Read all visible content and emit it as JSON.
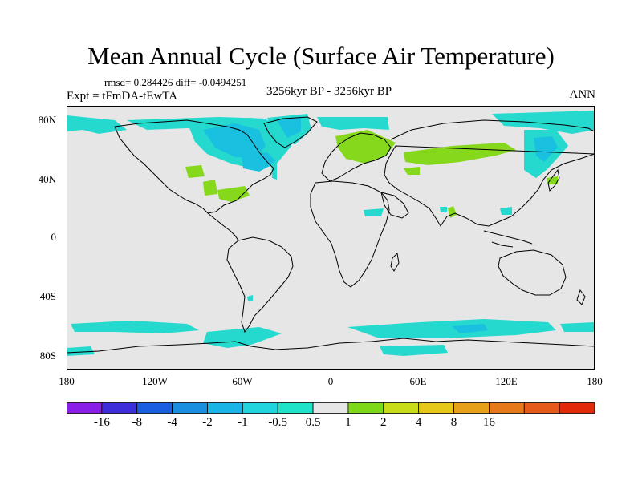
{
  "title": "Mean Annual Cycle (Surface Air Temperature)",
  "stats": "rmsd= 0.284426 diff= -0.0494251",
  "experiment": "Expt = tFmDA-tEwTA",
  "period": "3256kyr BP - 3256kyr BP",
  "season": "ANN",
  "lat_labels": [
    "80N",
    "40N",
    "0",
    "40S",
    "80S"
  ],
  "lon_labels": [
    "180",
    "120W",
    "60W",
    "0",
    "60E",
    "120E",
    "180"
  ],
  "colorbar": {
    "labels": [
      "-16",
      "-8",
      "-4",
      "-2",
      "-1",
      "-0.5",
      "0.5",
      "1",
      "2",
      "4",
      "8",
      "16"
    ],
    "colors": [
      "#8a1ee6",
      "#3d2ed9",
      "#1a5fe0",
      "#1a8fe0",
      "#1ab4e6",
      "#22d4dd",
      "#1fe3c9",
      "#e6e6e6",
      "#7ed81a",
      "#c8dc1a",
      "#e6c81a",
      "#e6a01a",
      "#e67a1a",
      "#e65a1a",
      "#e02a0a"
    ]
  },
  "colors": {
    "ocean_land_bg": "#e6e6e6",
    "cyan_light": "#26d9cf",
    "cyan_mid": "#1ac0e0",
    "green": "#86d81c",
    "coast": "#000000"
  }
}
